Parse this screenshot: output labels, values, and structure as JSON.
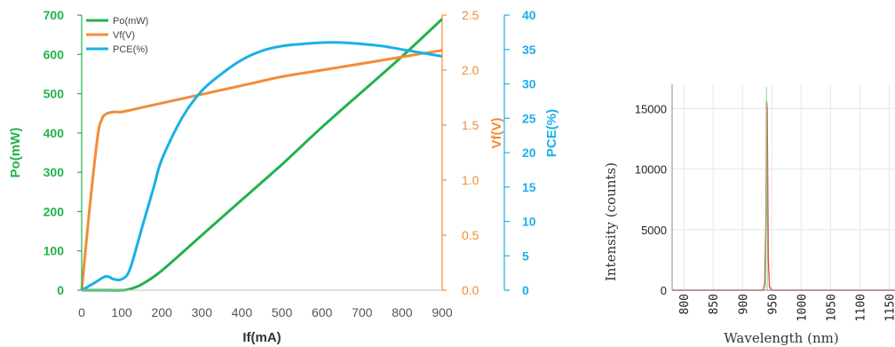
{
  "chart_data": [
    {
      "type": "line",
      "title": "",
      "xlabel": "If(mA)",
      "xlim": [
        0,
        900
      ],
      "x_ticks": [
        "0",
        "100",
        "200",
        "300",
        "400",
        "500",
        "600",
        "700",
        "800",
        "900"
      ],
      "axes": {
        "left": {
          "label": "Po(mW)",
          "lim": [
            0,
            700
          ],
          "ticks": [
            "0",
            "100",
            "200",
            "300",
            "400",
            "500",
            "600",
            "700"
          ],
          "color": "#22b24c"
        },
        "right1": {
          "label": "Vf(V)",
          "lim": [
            0,
            2.5
          ],
          "ticks": [
            "0.0",
            "0.5",
            "1.0",
            "1.5",
            "2.0",
            "2.5"
          ],
          "color": "#f28c38"
        },
        "right2": {
          "label": "PCE(%)",
          "lim": [
            0,
            40
          ],
          "ticks": [
            "0",
            "5",
            "10",
            "15",
            "20",
            "25",
            "30",
            "35",
            "40"
          ],
          "color": "#1ab0e6"
        }
      },
      "legend_position": "top-left",
      "series": [
        {
          "name": "Po(mW)",
          "axis": "left",
          "color": "#22b24c",
          "x": [
            0,
            50,
            100,
            120,
            150,
            200,
            300,
            400,
            500,
            600,
            700,
            800,
            900
          ],
          "y": [
            0,
            0,
            0,
            3,
            15,
            50,
            140,
            230,
            320,
            415,
            505,
            595,
            690
          ]
        },
        {
          "name": "Vf(V)",
          "axis": "right1",
          "color": "#f28c38",
          "x": [
            0,
            20,
            40,
            50,
            60,
            80,
            100,
            150,
            200,
            300,
            400,
            500,
            600,
            700,
            800,
            900
          ],
          "y": [
            0,
            0.75,
            1.4,
            1.55,
            1.6,
            1.62,
            1.62,
            1.66,
            1.7,
            1.78,
            1.86,
            1.94,
            2.0,
            2.06,
            2.12,
            2.18
          ]
        },
        {
          "name": "PCE(%)",
          "axis": "right2",
          "color": "#1ab0e6",
          "x": [
            0,
            30,
            60,
            80,
            100,
            120,
            150,
            180,
            200,
            250,
            300,
            350,
            400,
            450,
            500,
            550,
            600,
            650,
            700,
            750,
            800,
            850,
            900
          ],
          "y": [
            0,
            1,
            2,
            1.6,
            1.6,
            3,
            9,
            15,
            19,
            25,
            29,
            31.5,
            33.5,
            34.8,
            35.5,
            35.8,
            36,
            36,
            35.8,
            35.5,
            35,
            34.5,
            34
          ]
        }
      ]
    },
    {
      "type": "line",
      "title": "",
      "xlabel": "Wavelength (nm)",
      "ylabel": "Intensity (counts)",
      "xlim": [
        780,
        1160
      ],
      "ylim": [
        0,
        17000
      ],
      "x_ticks": [
        "800",
        "850",
        "900",
        "950",
        "1000",
        "1050",
        "1100",
        "1150"
      ],
      "y_ticks": [
        "0",
        "5000",
        "10000",
        "15000"
      ],
      "grid": true,
      "series": [
        {
          "color": "#d9534f",
          "x": [
            780,
            900,
            935,
            938,
            940,
            941,
            942,
            943,
            944,
            946,
            950,
            1000,
            1160
          ],
          "y": [
            0,
            0,
            0,
            600,
            6000,
            15600,
            15000,
            9000,
            2500,
            300,
            0,
            0,
            0
          ]
        },
        {
          "color": "#7cd67c",
          "x": [
            939.5,
            941,
            942.5
          ],
          "y": [
            0,
            16800,
            0
          ]
        }
      ]
    }
  ]
}
